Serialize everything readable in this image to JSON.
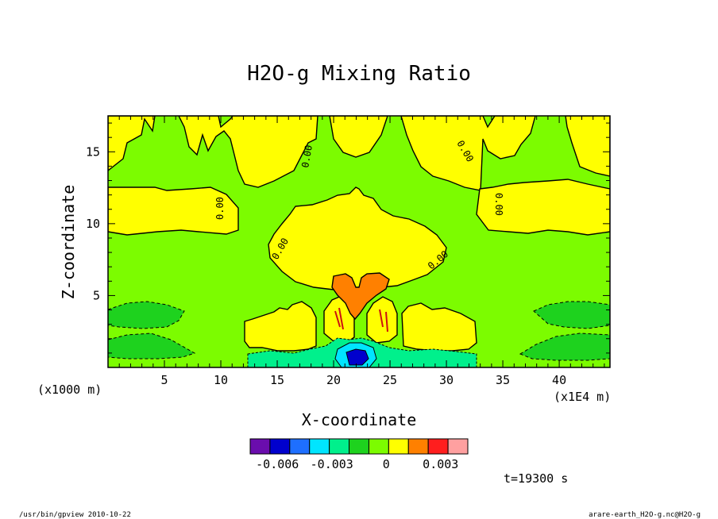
{
  "chart_data": {
    "type": "heatmap",
    "title": "H2O-g Mixing Ratio",
    "xlabel": "X-coordinate",
    "ylabel": "Z-coordinate",
    "x_unit_left": "(x1000 m)",
    "x_unit_right": "(x1E4 m)",
    "xlim": [
      0,
      44.5
    ],
    "ylim": [
      0,
      17.5
    ],
    "x_ticks": [
      "5",
      "10",
      "15",
      "20",
      "25",
      "30",
      "35",
      "40"
    ],
    "y_ticks": [
      "5",
      "10",
      "15"
    ],
    "contour_label": "0.00",
    "colorbar": {
      "colors": [
        "#6a0dad",
        "#0000cd",
        "#1e6fff",
        "#00e5ff",
        "#00f08c",
        "#1ed21e",
        "#7cfc00",
        "#ffff00",
        "#ff8000",
        "#ff1e1e",
        "#ffa0a0"
      ],
      "tick_labels": [
        "-0.006",
        "-0.003",
        "0",
        "0.003"
      ],
      "range": [
        -0.0075,
        0.0045
      ]
    },
    "fields": {
      "background": "#7cfc00",
      "moist_region": "#ffff00",
      "core_positive": "#ff8000",
      "weak_negative": "#1ed21e",
      "negative": "#00f08c",
      "strong_negative": "#00e5ff",
      "min_negative": "#0000cd"
    }
  },
  "time_label": "t=19300 s",
  "footer_left": "/usr/bin/gpview  2010-10-22",
  "footer_right": "arare-earth_H2O-g.nc@H2O-g"
}
